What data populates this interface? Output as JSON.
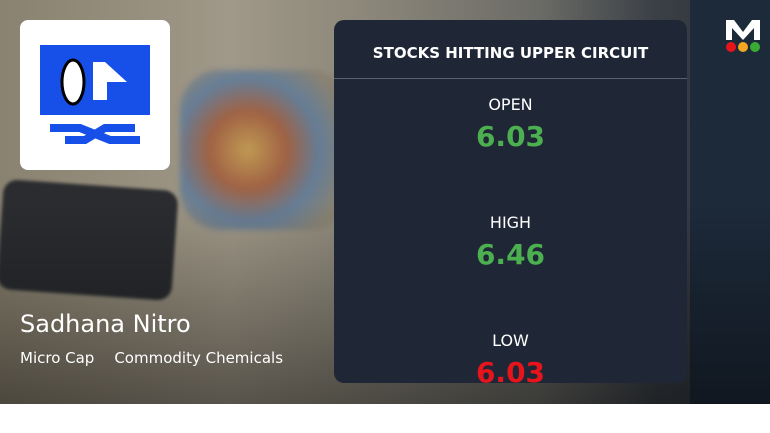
{
  "company": {
    "name": "Sadhana Nitro",
    "cap": "Micro Cap",
    "sector": "Commodity Chemicals"
  },
  "card": {
    "title": "STOCKS HITTING UPPER CIRCUIT",
    "open": {
      "label": "OPEN",
      "value": "6.03",
      "color": "#4caf50"
    },
    "high": {
      "label": "HIGH",
      "value": "6.46",
      "color": "#4caf50"
    },
    "low": {
      "label": "LOW",
      "value": "6.03",
      "color": "#e8141c"
    }
  },
  "brand": {
    "letter": "M",
    "dots": [
      "#e8141c",
      "#f5a623",
      "#3aaa35"
    ]
  }
}
